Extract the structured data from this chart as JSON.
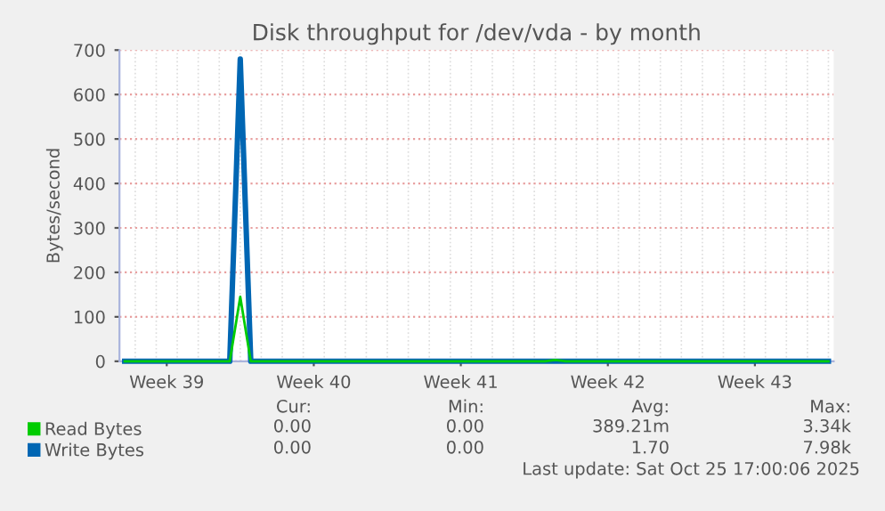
{
  "chart_data": {
    "type": "line",
    "title": "Disk throughput for /dev/vda - by month",
    "ylabel": "Bytes/second",
    "categories": [
      null,
      null,
      null,
      null,
      "Week 39",
      null,
      null,
      null,
      null,
      null,
      null,
      null,
      null,
      null,
      null,
      null,
      null,
      null,
      "Week 40",
      null,
      null,
      null,
      null,
      null,
      null,
      null,
      null,
      null,
      null,
      null,
      null,
      null,
      "Week 41",
      null,
      null,
      null,
      null,
      null,
      null,
      null,
      null,
      null,
      null,
      null,
      null,
      null,
      "Week 42",
      null,
      null,
      null,
      null,
      null,
      null,
      null,
      null,
      null,
      null,
      null,
      null,
      null,
      "Week 43",
      null,
      null,
      null,
      null,
      null,
      null,
      null
    ],
    "series": [
      {
        "name": "Read Bytes",
        "color": "#00cc00",
        "values": [
          0,
          0,
          0,
          0,
          0,
          0,
          0,
          0,
          0,
          0,
          0,
          145,
          0,
          0,
          0,
          0,
          0,
          0,
          0,
          0,
          0,
          0,
          0,
          0,
          0,
          0,
          0,
          0,
          0,
          0,
          0,
          0,
          0,
          0,
          0,
          0,
          0,
          0,
          0,
          0,
          0,
          3,
          0,
          0,
          0,
          0,
          0,
          0,
          0,
          0,
          0,
          0,
          0,
          0,
          0,
          0,
          0,
          0,
          0,
          0,
          0,
          0,
          0,
          0,
          0,
          0,
          0,
          0
        ]
      },
      {
        "name": "Write Bytes",
        "color": "#0066b3",
        "values": [
          0,
          0,
          0,
          0,
          0,
          0,
          0,
          0,
          0,
          0,
          0,
          680,
          0,
          0,
          0,
          0,
          0,
          0,
          0,
          0,
          0,
          0,
          0,
          0,
          0,
          0,
          0,
          0,
          0,
          0,
          0,
          0,
          0,
          0,
          0,
          0,
          0,
          0,
          0,
          0,
          0,
          0,
          0,
          0,
          0,
          0,
          0,
          0,
          0,
          0,
          0,
          0,
          0,
          0,
          0,
          0,
          0,
          0,
          0,
          0,
          0,
          0,
          0,
          0,
          0,
          0,
          0,
          0
        ]
      }
    ],
    "ylim": [
      0,
      700
    ],
    "yticks": [
      0,
      100,
      200,
      300,
      400,
      500,
      600,
      700
    ],
    "grid": true,
    "legend": "bottom",
    "annotations": [
      "Cur:",
      "Min:",
      "Avg:",
      "Max:",
      "0.00",
      "0.00",
      "389.21m",
      "3.34k",
      "0.00",
      "0.00",
      "1.70",
      "7.98k",
      "Last update: Sat Oct 25 17:00:06 2025"
    ]
  }
}
